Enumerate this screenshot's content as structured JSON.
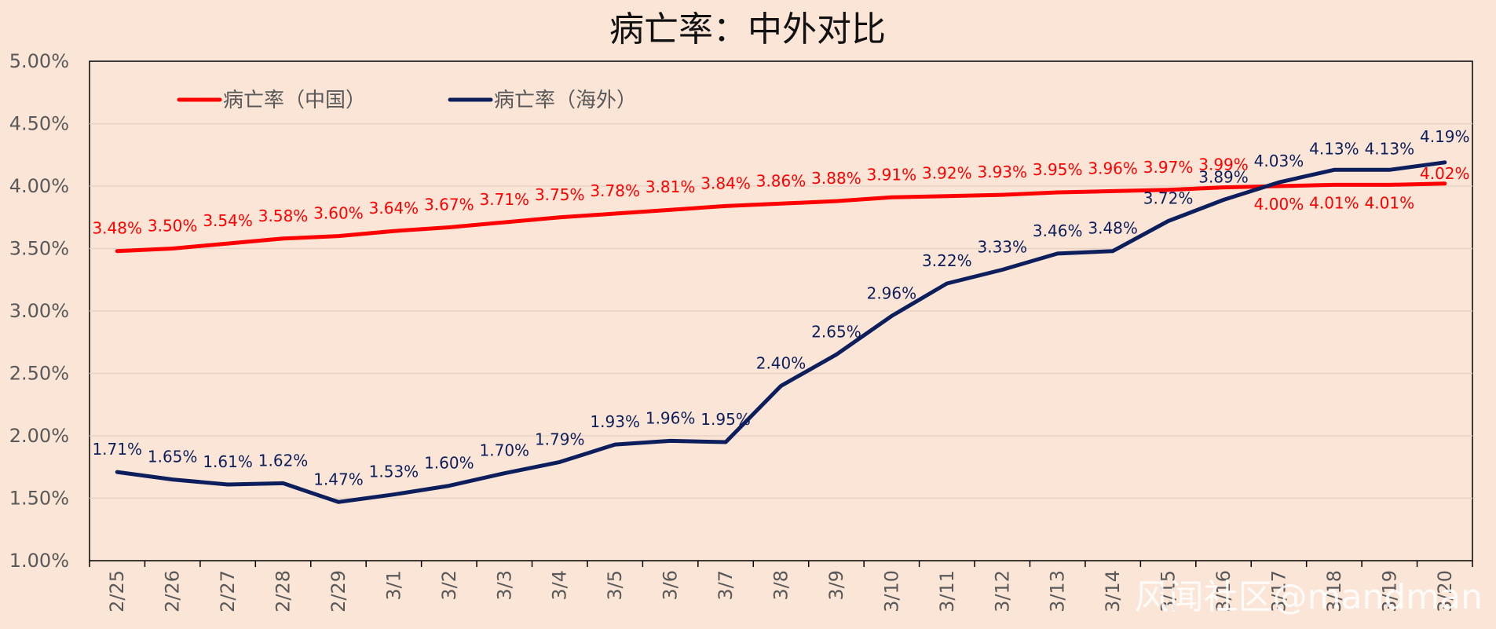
{
  "chart_data": {
    "type": "line",
    "title": "病亡率：中外对比",
    "xlabel": "",
    "ylabel": "",
    "ylim": [
      0.01,
      0.05
    ],
    "yticks": [
      "1.00%",
      "1.50%",
      "2.00%",
      "2.50%",
      "3.00%",
      "3.50%",
      "4.00%",
      "4.50%",
      "5.00%"
    ],
    "grid": "horizontal",
    "legend_position": "top-left",
    "categories": [
      "2/25",
      "2/26",
      "2/27",
      "2/28",
      "2/29",
      "3/1",
      "3/2",
      "3/3",
      "3/4",
      "3/5",
      "3/6",
      "3/7",
      "3/8",
      "3/9",
      "3/10",
      "3/11",
      "3/12",
      "3/13",
      "3/14",
      "3/15",
      "3/16",
      "3/17",
      "3/18",
      "3/19",
      "3/20"
    ],
    "series": [
      {
        "name": "病亡率（中国）",
        "color": "#ff0000",
        "values": [
          0.0348,
          0.035,
          0.0354,
          0.0358,
          0.036,
          0.0364,
          0.0367,
          0.0371,
          0.0375,
          0.0378,
          0.0381,
          0.0384,
          0.0386,
          0.0388,
          0.0391,
          0.0392,
          0.0393,
          0.0395,
          0.0396,
          0.0397,
          0.0399,
          0.04,
          0.0401,
          0.0401,
          0.0402
        ],
        "labels": [
          "3.48%",
          "3.50%",
          "3.54%",
          "3.58%",
          "3.60%",
          "3.64%",
          "3.67%",
          "3.71%",
          "3.75%",
          "3.78%",
          "3.81%",
          "3.84%",
          "3.86%",
          "3.88%",
          "3.91%",
          "3.92%",
          "3.93%",
          "3.95%",
          "3.96%",
          "3.97%",
          "3.99%",
          "4.00%",
          "4.01%",
          "4.01%",
          "4.02%"
        ]
      },
      {
        "name": "病亡率（海外）",
        "color": "#0c1f5c",
        "values": [
          0.0171,
          0.0165,
          0.0161,
          0.0162,
          0.0147,
          0.0153,
          0.016,
          0.017,
          0.0179,
          0.0193,
          0.0196,
          0.0195,
          0.024,
          0.0265,
          0.0296,
          0.0322,
          0.0333,
          0.0346,
          0.0348,
          0.0372,
          0.0389,
          0.0403,
          0.0413,
          0.0413,
          0.0419
        ],
        "labels": [
          "1.71%",
          "1.65%",
          "1.61%",
          "1.62%",
          "1.47%",
          "1.53%",
          "1.60%",
          "1.70%",
          "1.79%",
          "1.93%",
          "1.96%",
          "1.95%",
          "2.40%",
          "2.65%",
          "2.96%",
          "3.22%",
          "3.33%",
          "3.46%",
          "3.48%",
          "3.72%",
          "3.89%",
          "4.03%",
          "4.13%",
          "4.13%",
          "4.19%"
        ]
      }
    ]
  },
  "watermark": "风闻社区@mandman"
}
